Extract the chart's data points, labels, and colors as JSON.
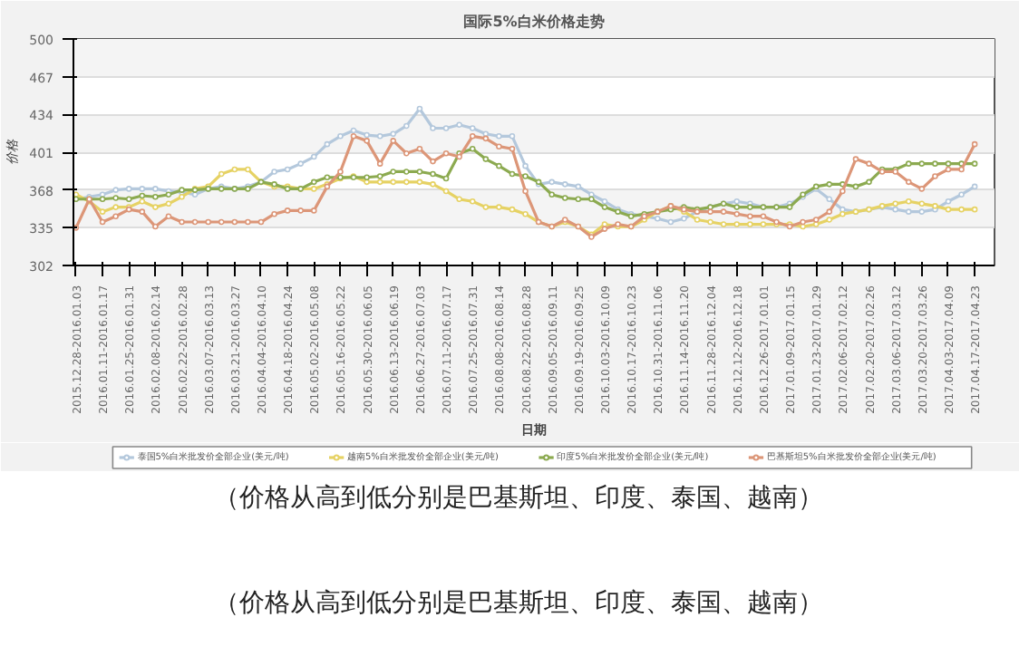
{
  "chart_data": {
    "type": "line",
    "title": "国际5%白米价格走势",
    "xlabel": "日期",
    "ylabel": "价格",
    "categories": [
      "2015.12.28-2016.01.03",
      null,
      "2016.01.11-2016.01.17",
      null,
      "2016.01.25-2016.01.31",
      null,
      "2016.02.08-2016.02.14",
      null,
      "2016.02.22-2016.02.28",
      null,
      "2016.03.07-2016.03.13",
      null,
      "2016.03.21-2016.03.27",
      null,
      "2016.04.04-2016.04.10",
      null,
      "2016.04.18-2016.04.24",
      null,
      "2016.05.02-2016.05.08",
      null,
      "2016.05.16-2016.05.22",
      null,
      "2016.05.30-2016.06.05",
      null,
      "2016.06.13-2016.06.19",
      null,
      "2016.06.27-2016.07.03",
      null,
      "2016.07.11-2016.07.17",
      null,
      "2016.07.25-2016.07.31",
      null,
      "2016.08.08-2016.08.14",
      null,
      "2016.08.22-2016.08.28",
      null,
      "2016.09.05-2016.09.11",
      null,
      "2016.09.19-2016.09.25",
      null,
      "2016.10.03-2016.10.09",
      null,
      "2016.10.17-2016.10.23",
      null,
      "2016.10.31-2016.11.06",
      null,
      "2016.11.14-2016.11.20",
      null,
      "2016.11.28-2016.12.04",
      null,
      "2016.12.12-2016.12.18",
      null,
      "2016.12.26-2017.01.01",
      null,
      "2017.01.09-2017.01.15",
      null,
      "2017.01.23-2017.01.29",
      null,
      "2017.02.06-2017.02.12",
      null,
      "2017.02.20-2017.02.26",
      null,
      "2017.03.06-2017.03.12",
      null,
      "2017.03.20-2017.03.26",
      null,
      "2017.04.03-2017.04.09",
      null,
      "2017.04.17-2017.04.23"
    ],
    "series": [
      {
        "name": "泰国5%白米批发价全部企业(美元/吨)",
        "color": "#b4c8dc",
        "values": [
          360,
          362,
          364,
          368,
          369,
          369,
          369,
          367,
          366,
          364,
          369,
          371,
          369,
          371,
          375,
          384,
          386,
          391,
          397,
          408,
          415,
          420,
          416,
          415,
          417,
          424,
          439,
          422,
          422,
          425,
          422,
          417,
          415,
          415,
          389,
          373,
          375,
          373,
          371,
          364,
          358,
          351,
          347,
          345,
          343,
          340,
          343,
          349,
          353,
          356,
          358,
          356,
          353,
          353,
          356,
          362,
          369,
          360,
          351,
          349,
          351,
          353,
          351,
          349,
          349,
          351,
          358,
          364,
          371
        ]
      },
      {
        "name": "越南5%白米批发价全部企业(美元/吨)",
        "color": "#e6d264",
        "values": [
          364,
          358,
          349,
          353,
          353,
          358,
          353,
          356,
          362,
          369,
          371,
          382,
          386,
          386,
          375,
          371,
          371,
          369,
          369,
          373,
          378,
          380,
          375,
          375,
          375,
          375,
          375,
          373,
          367,
          360,
          358,
          353,
          353,
          351,
          347,
          340,
          336,
          340,
          336,
          329,
          338,
          336,
          336,
          342,
          349,
          354,
          349,
          342,
          340,
          338,
          338,
          338,
          338,
          338,
          338,
          336,
          338,
          342,
          347,
          349,
          351,
          354,
          356,
          358,
          356,
          354,
          351,
          351,
          351
        ]
      },
      {
        "name": "印度5%白米批发价全部企业(美元/吨)",
        "color": "#8caa50",
        "values": [
          360,
          360,
          360,
          361,
          360,
          363,
          362,
          364,
          368,
          368,
          369,
          369,
          369,
          369,
          375,
          373,
          369,
          369,
          375,
          379,
          379,
          379,
          379,
          380,
          384,
          384,
          384,
          382,
          378,
          400,
          404,
          395,
          389,
          382,
          380,
          375,
          364,
          361,
          360,
          360,
          353,
          349,
          345,
          347,
          349,
          351,
          353,
          351,
          353,
          356,
          353,
          353,
          353,
          353,
          353,
          364,
          371,
          373,
          373,
          371,
          375,
          386,
          386,
          391,
          391,
          391,
          391,
          391,
          391
        ]
      },
      {
        "name": "巴基斯坦5%白米批发价全部企业(美元/吨)",
        "color": "#dc9678",
        "values": [
          335,
          360,
          340,
          345,
          351,
          349,
          336,
          345,
          340,
          340,
          340,
          340,
          340,
          340,
          340,
          347,
          350,
          350,
          350,
          371,
          384,
          415,
          411,
          391,
          411,
          400,
          404,
          393,
          400,
          397,
          415,
          413,
          406,
          404,
          367,
          340,
          336,
          342,
          336,
          327,
          334,
          338,
          336,
          345,
          349,
          354,
          351,
          349,
          349,
          349,
          347,
          345,
          345,
          340,
          336,
          340,
          342,
          349,
          367,
          395,
          391,
          384,
          384,
          375,
          369,
          380,
          386,
          386,
          408
        ]
      }
    ],
    "ylim": [
      302,
      500
    ],
    "yticks": [
      302,
      335,
      368,
      401,
      434,
      467,
      500
    ],
    "grid": "y",
    "legend": "bottom",
    "marker": "circle",
    "annotations": [
      "（价格从高到低分别是巴基斯坦、印度、泰国、越南）",
      "（价格从高到低分别是巴基斯坦、印度、泰国、越南）"
    ]
  }
}
